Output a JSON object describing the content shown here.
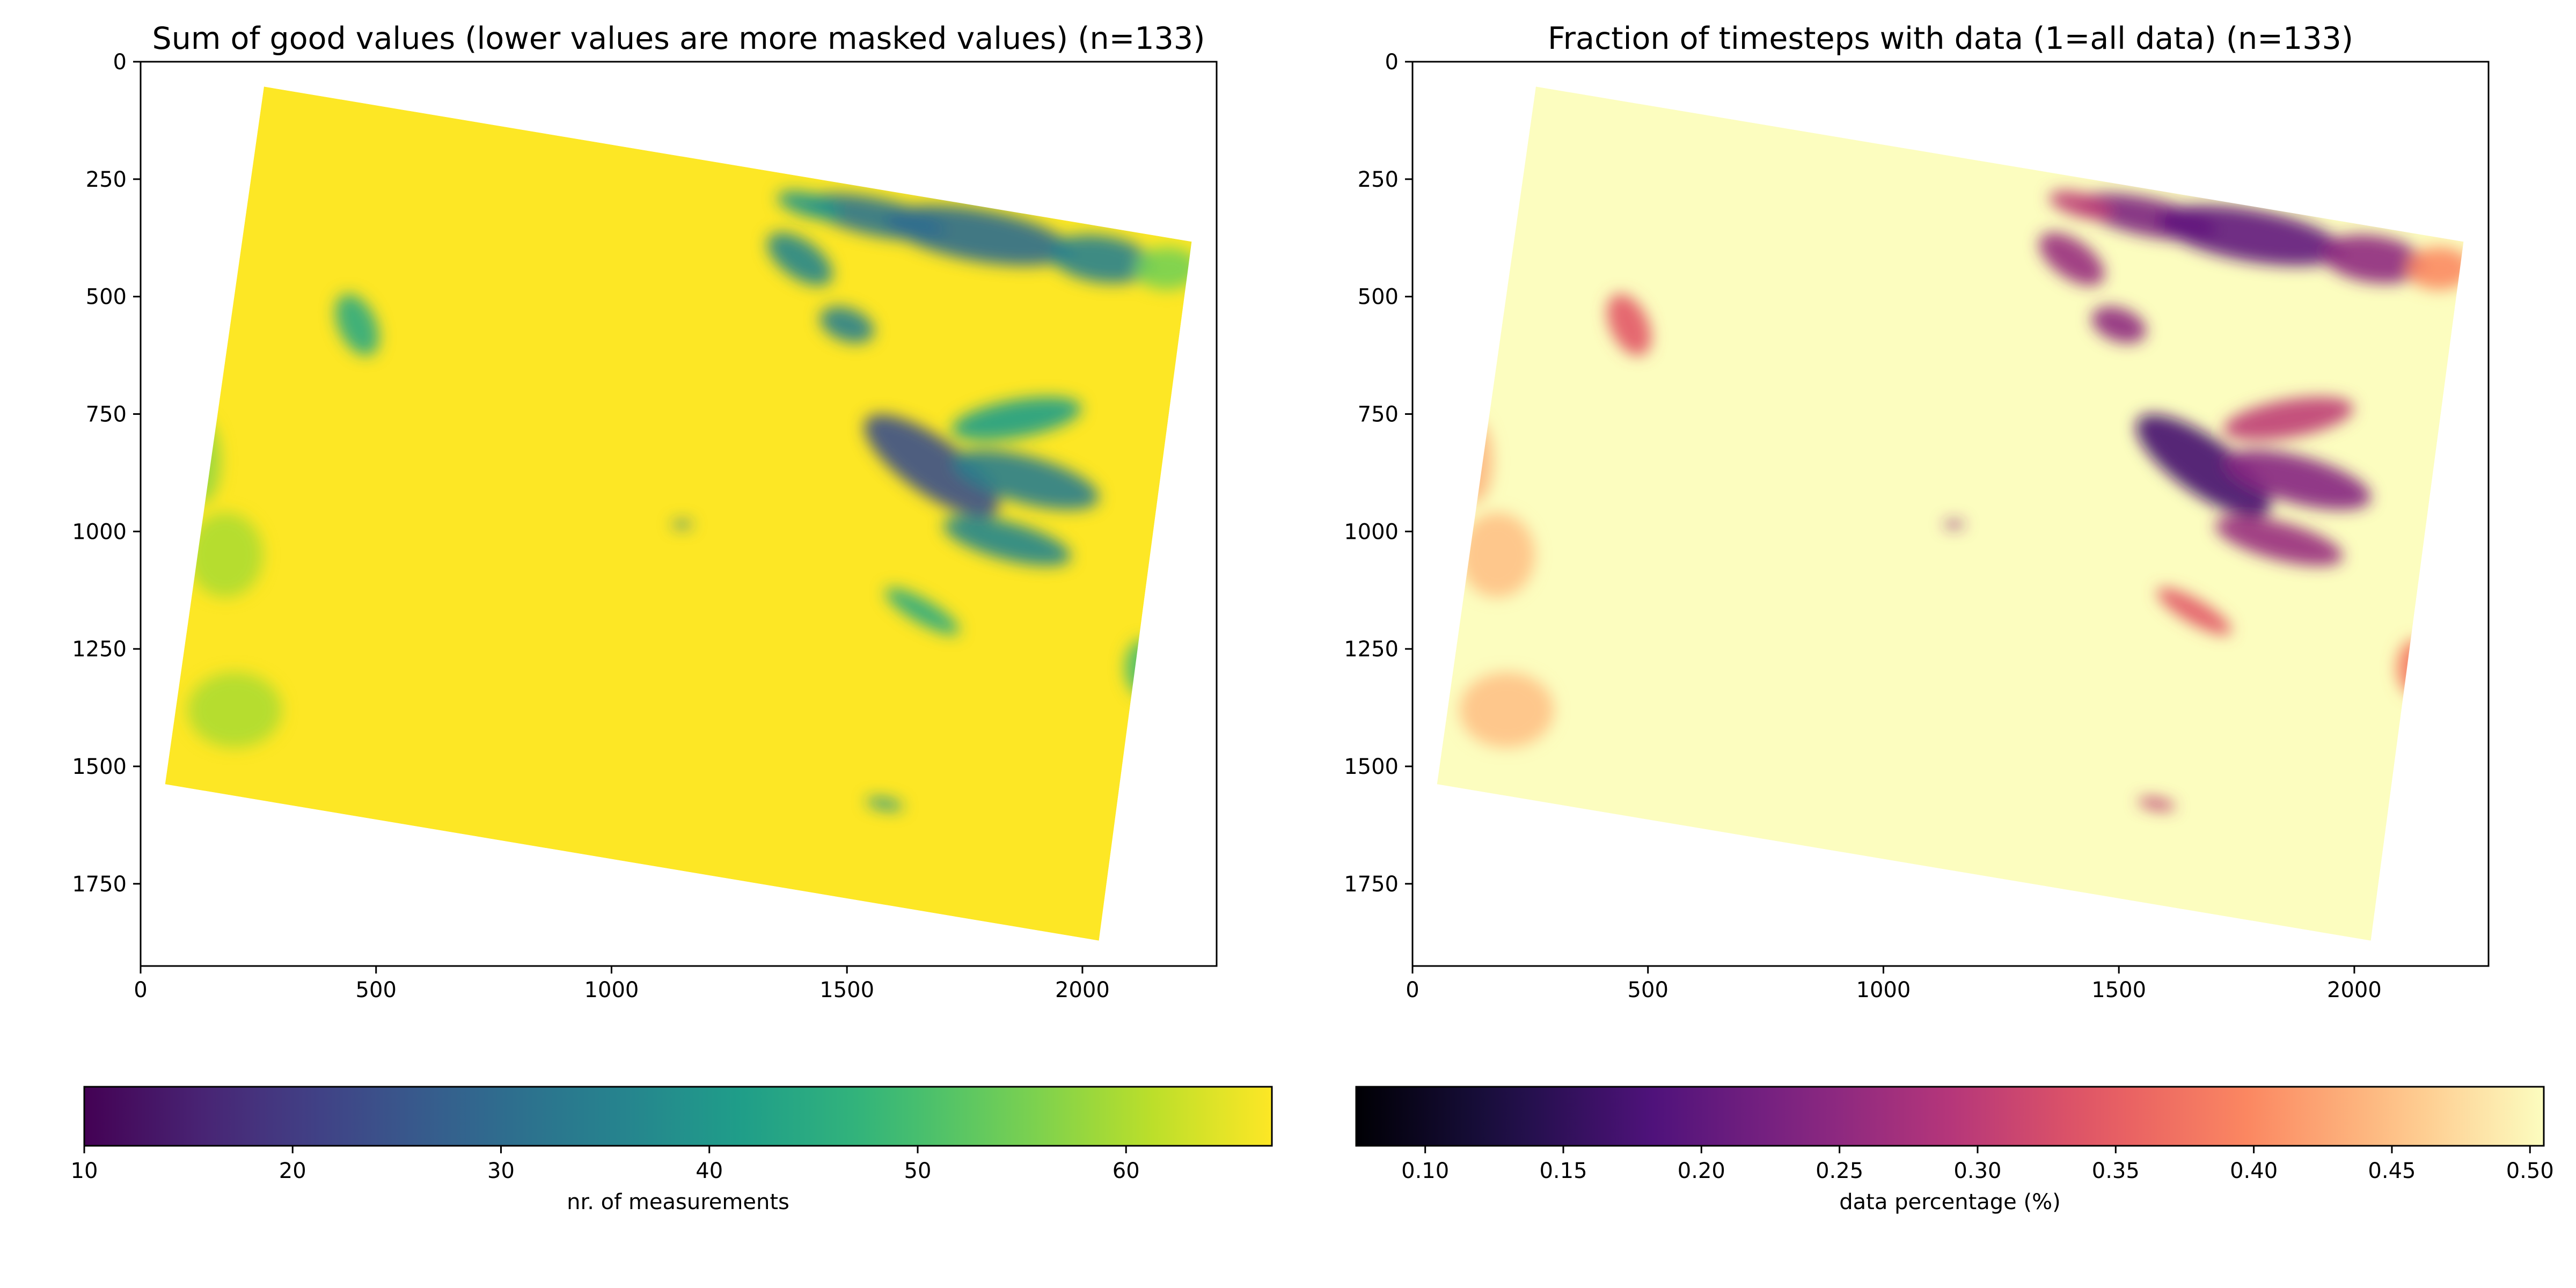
{
  "chart_data": [
    {
      "type": "heatmap",
      "title": "Sum of good values (lower values are more masked values) (n=133)",
      "xlabel": "",
      "ylabel": "",
      "x_ticks": [
        0,
        500,
        1000,
        1500,
        2000
      ],
      "y_ticks": [
        0,
        250,
        500,
        750,
        1000,
        1250,
        1500,
        1750
      ],
      "xlim": [
        0,
        2285
      ],
      "ylim": [
        1925,
        0
      ],
      "footprint": {
        "x": [
          262,
          2232,
          2035,
          52
        ],
        "y": [
          53,
          383,
          1871,
          1538
        ]
      },
      "colormap": "viridis",
      "colorbar": {
        "label": "nr. of measurements",
        "ticks": [
          10,
          20,
          30,
          40,
          50,
          60
        ],
        "range": [
          10,
          67
        ]
      },
      "background_value": 67,
      "features": [
        {
          "x": 1560,
          "y": 330,
          "rx": 150,
          "ry": 40,
          "rot": 12,
          "value": 32
        },
        {
          "x": 1780,
          "y": 370,
          "rx": 200,
          "ry": 55,
          "rot": 10,
          "value": 30
        },
        {
          "x": 2040,
          "y": 420,
          "rx": 110,
          "ry": 50,
          "rot": 8,
          "value": 35
        },
        {
          "x": 2180,
          "y": 440,
          "rx": 70,
          "ry": 45,
          "rot": 0,
          "value": 55
        },
        {
          "x": 1420,
          "y": 305,
          "rx": 70,
          "ry": 25,
          "rot": 15,
          "value": 40
        },
        {
          "x": 1400,
          "y": 420,
          "rx": 80,
          "ry": 40,
          "rot": 35,
          "value": 36
        },
        {
          "x": 1500,
          "y": 560,
          "rx": 60,
          "ry": 35,
          "rot": 20,
          "value": 35
        },
        {
          "x": 1680,
          "y": 860,
          "rx": 170,
          "ry": 60,
          "rot": 35,
          "value": 24
        },
        {
          "x": 1860,
          "y": 760,
          "rx": 140,
          "ry": 40,
          "rot": -10,
          "value": 42
        },
        {
          "x": 1880,
          "y": 890,
          "rx": 160,
          "ry": 50,
          "rot": 15,
          "value": 34
        },
        {
          "x": 1840,
          "y": 1020,
          "rx": 140,
          "ry": 40,
          "rot": 15,
          "value": 36
        },
        {
          "x": 1660,
          "y": 1170,
          "rx": 90,
          "ry": 25,
          "rot": 30,
          "value": 45
        },
        {
          "x": 460,
          "y": 560,
          "rx": 40,
          "ry": 70,
          "rot": -25,
          "value": 45
        },
        {
          "x": 1580,
          "y": 1580,
          "rx": 40,
          "ry": 12,
          "rot": 10,
          "value": 40
        },
        {
          "x": 1150,
          "y": 985,
          "rx": 22,
          "ry": 8,
          "rot": 0,
          "value": 35
        },
        {
          "x": 180,
          "y": 1050,
          "rx": 80,
          "ry": 90,
          "rot": 0,
          "value": 60
        },
        {
          "x": 200,
          "y": 1380,
          "rx": 100,
          "ry": 80,
          "rot": 0,
          "value": 60
        },
        {
          "x": 130,
          "y": 850,
          "rx": 40,
          "ry": 90,
          "rot": 0,
          "value": 58
        },
        {
          "x": 2130,
          "y": 1290,
          "rx": 40,
          "ry": 60,
          "rot": 0,
          "value": 50
        }
      ]
    },
    {
      "type": "heatmap",
      "title": "Fraction of timesteps with data (1=all data) (n=133)",
      "xlabel": "",
      "ylabel": "",
      "x_ticks": [
        0,
        500,
        1000,
        1500,
        2000
      ],
      "y_ticks": [
        0,
        250,
        500,
        750,
        1000,
        1250,
        1500,
        1750
      ],
      "xlim": [
        0,
        2285
      ],
      "ylim": [
        1925,
        0
      ],
      "footprint": {
        "x": [
          262,
          2232,
          2035,
          52
        ],
        "y": [
          53,
          383,
          1871,
          1538
        ]
      },
      "colormap": "magma",
      "colorbar": {
        "label": "data percentage (%)",
        "ticks": [
          "0.10",
          "0.15",
          "0.20",
          "0.25",
          "0.30",
          "0.35",
          "0.40",
          "0.45",
          "0.50"
        ],
        "range": [
          0.075,
          0.505
        ]
      },
      "background_value": 0.505,
      "features": [
        {
          "x": 1560,
          "y": 330,
          "rx": 150,
          "ry": 40,
          "rot": 12,
          "value": 0.23
        },
        {
          "x": 1780,
          "y": 370,
          "rx": 200,
          "ry": 55,
          "rot": 10,
          "value": 0.2
        },
        {
          "x": 2040,
          "y": 420,
          "rx": 110,
          "ry": 50,
          "rot": 8,
          "value": 0.25
        },
        {
          "x": 2180,
          "y": 440,
          "rx": 70,
          "ry": 45,
          "rot": 0,
          "value": 0.4
        },
        {
          "x": 1420,
          "y": 305,
          "rx": 70,
          "ry": 25,
          "rot": 15,
          "value": 0.3
        },
        {
          "x": 1400,
          "y": 420,
          "rx": 80,
          "ry": 40,
          "rot": 35,
          "value": 0.26
        },
        {
          "x": 1500,
          "y": 560,
          "rx": 60,
          "ry": 35,
          "rot": 20,
          "value": 0.25
        },
        {
          "x": 1680,
          "y": 860,
          "rx": 170,
          "ry": 60,
          "rot": 35,
          "value": 0.17
        },
        {
          "x": 1860,
          "y": 760,
          "rx": 140,
          "ry": 40,
          "rot": -10,
          "value": 0.3
        },
        {
          "x": 1880,
          "y": 890,
          "rx": 160,
          "ry": 50,
          "rot": 15,
          "value": 0.24
        },
        {
          "x": 1840,
          "y": 1020,
          "rx": 140,
          "ry": 40,
          "rot": 15,
          "value": 0.26
        },
        {
          "x": 1660,
          "y": 1170,
          "rx": 90,
          "ry": 25,
          "rot": 30,
          "value": 0.34
        },
        {
          "x": 460,
          "y": 560,
          "rx": 40,
          "ry": 70,
          "rot": -25,
          "value": 0.34
        },
        {
          "x": 1580,
          "y": 1580,
          "rx": 40,
          "ry": 12,
          "rot": 10,
          "value": 0.3
        },
        {
          "x": 1150,
          "y": 985,
          "rx": 22,
          "ry": 8,
          "rot": 0,
          "value": 0.25
        },
        {
          "x": 180,
          "y": 1050,
          "rx": 80,
          "ry": 90,
          "rot": 0,
          "value": 0.45
        },
        {
          "x": 200,
          "y": 1380,
          "rx": 100,
          "ry": 80,
          "rot": 0,
          "value": 0.45
        },
        {
          "x": 130,
          "y": 850,
          "rx": 40,
          "ry": 90,
          "rot": 0,
          "value": 0.44
        },
        {
          "x": 2130,
          "y": 1290,
          "rx": 40,
          "ry": 60,
          "rot": 0,
          "value": 0.38
        }
      ]
    }
  ]
}
